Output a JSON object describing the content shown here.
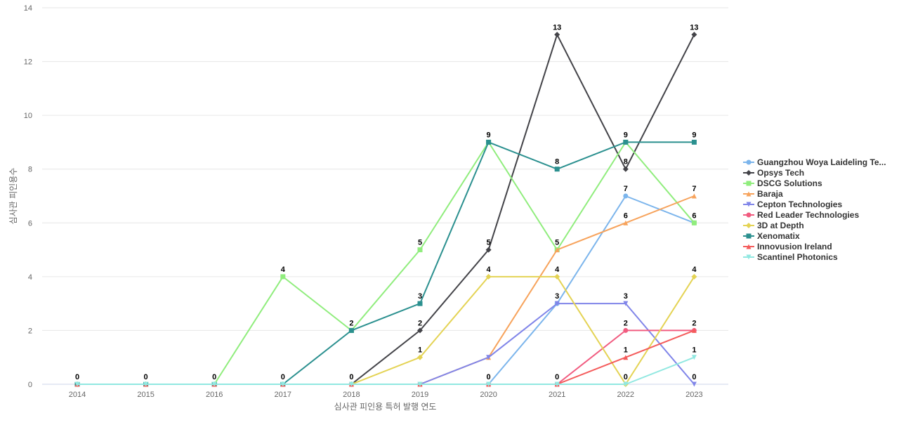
{
  "chart_data": {
    "type": "line",
    "title": "",
    "xlabel": "심사관 피인용 특허 발행 연도",
    "ylabel": "심사관 피인용수",
    "ylim": [
      0,
      14
    ],
    "yticks": [
      0,
      2,
      4,
      6,
      8,
      10,
      12,
      14
    ],
    "grid": true,
    "legend_position": "right",
    "categories": [
      "2014",
      "2015",
      "2016",
      "2017",
      "2018",
      "2019",
      "2020",
      "2021",
      "2022",
      "2023"
    ],
    "series": [
      {
        "name": "Guangzhou Woya Laideling Te...",
        "color": "#7cb5ec",
        "marker": "circle",
        "values": [
          0,
          0,
          0,
          0,
          0,
          0,
          0,
          3,
          7,
          6
        ],
        "labels": [
          false,
          false,
          false,
          false,
          false,
          false,
          false,
          false,
          true,
          false
        ]
      },
      {
        "name": "Opsys Tech",
        "color": "#434348",
        "marker": "diamond",
        "values": [
          0,
          0,
          0,
          0,
          0,
          2,
          5,
          13,
          8,
          13
        ],
        "labels": [
          false,
          false,
          false,
          false,
          false,
          true,
          true,
          true,
          true,
          true
        ]
      },
      {
        "name": "DSCG Solutions",
        "color": "#90ed7d",
        "marker": "square",
        "values": [
          0,
          0,
          0,
          4,
          2,
          5,
          9,
          5,
          9,
          6
        ],
        "labels": [
          false,
          false,
          false,
          true,
          true,
          true,
          false,
          true,
          false,
          true
        ]
      },
      {
        "name": "Baraja",
        "color": "#f7a35c",
        "marker": "triangle",
        "values": [
          0,
          0,
          0,
          0,
          0,
          0,
          1,
          5,
          6,
          7
        ],
        "labels": [
          false,
          false,
          false,
          false,
          false,
          false,
          false,
          false,
          true,
          true
        ]
      },
      {
        "name": "Cepton Technologies",
        "color": "#8085e9",
        "marker": "triangle-down",
        "values": [
          0,
          0,
          0,
          0,
          0,
          0,
          1,
          3,
          3,
          0
        ],
        "labels": [
          false,
          false,
          false,
          false,
          false,
          false,
          false,
          true,
          true,
          true
        ]
      },
      {
        "name": "Red Leader Technologies",
        "color": "#f15c80",
        "marker": "circle",
        "values": [
          0,
          0,
          0,
          0,
          0,
          0,
          0,
          0,
          2,
          2
        ],
        "labels": [
          false,
          false,
          false,
          false,
          false,
          false,
          false,
          true,
          true,
          true
        ]
      },
      {
        "name": "3D at Depth",
        "color": "#e4d354",
        "marker": "diamond",
        "values": [
          0,
          0,
          0,
          0,
          0,
          1,
          4,
          4,
          0,
          4
        ],
        "labels": [
          false,
          false,
          false,
          false,
          true,
          true,
          true,
          true,
          true,
          true
        ]
      },
      {
        "name": "Xenomatix",
        "color": "#2b908f",
        "marker": "square",
        "values": [
          0,
          0,
          0,
          0,
          2,
          3,
          9,
          8,
          9,
          9
        ],
        "labels": [
          true,
          true,
          true,
          true,
          false,
          true,
          true,
          true,
          true,
          true
        ]
      },
      {
        "name": "Innovusion Ireland",
        "color": "#f45b5b",
        "marker": "triangle",
        "values": [
          0,
          0,
          0,
          0,
          0,
          0,
          0,
          0,
          1,
          2
        ],
        "labels": [
          false,
          false,
          false,
          false,
          false,
          false,
          false,
          false,
          true,
          false
        ]
      },
      {
        "name": "Scantinel Photonics",
        "color": "#91e8e1",
        "marker": "triangle-down",
        "values": [
          0,
          0,
          0,
          0,
          0,
          0,
          0,
          0,
          0,
          1
        ],
        "labels": [
          false,
          false,
          false,
          false,
          false,
          false,
          true,
          false,
          false,
          true
        ]
      }
    ]
  }
}
